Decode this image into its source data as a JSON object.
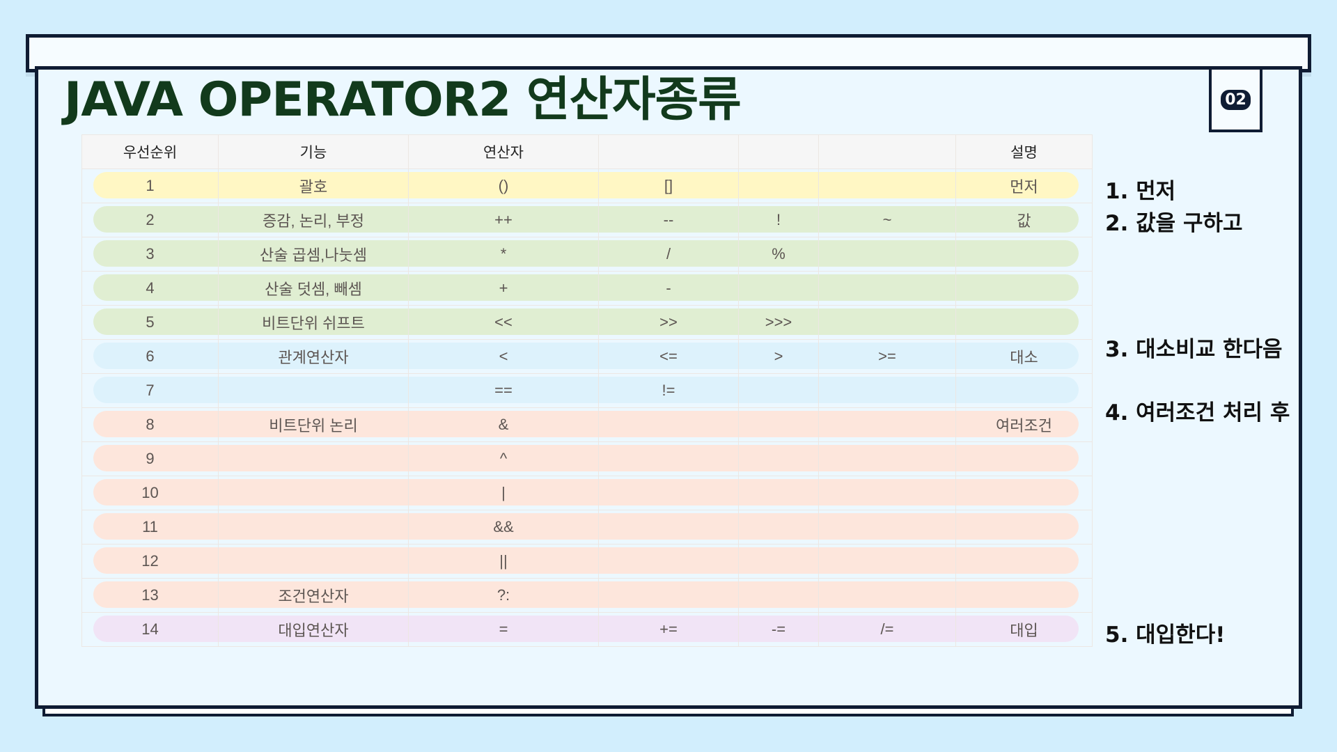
{
  "title": "JAVA OPERATOR2  연산자종류",
  "badge": "02",
  "table": {
    "headers": [
      "우선순위",
      "기능",
      "연산자",
      "",
      "",
      "",
      "설명"
    ],
    "rows": [
      {
        "priority": "1",
        "func": "괄호",
        "op": "()",
        "op2": "[]",
        "op3": "",
        "op4": "",
        "desc": "먼저",
        "color": "#fff7c4"
      },
      {
        "priority": "2",
        "func": "증감, 논리, 부정",
        "op": "++",
        "op2": "--",
        "op3": "!",
        "op4": "~",
        "desc": "값",
        "color": "#e0eed2"
      },
      {
        "priority": "3",
        "func": "산술 곱셈,나눗셈",
        "op": "*",
        "op2": "/",
        "op3": "%",
        "op4": "",
        "desc": "",
        "color": "#e0eed2"
      },
      {
        "priority": "4",
        "func": "산술 덧셈, 빼셈",
        "op": "+",
        "op2": "-",
        "op3": "",
        "op4": "",
        "desc": "",
        "color": "#e0eed2"
      },
      {
        "priority": "5",
        "func": "비트단위 쉬프트",
        "op": "<<",
        "op2": ">>",
        "op3": ">>>",
        "op4": "",
        "desc": "",
        "color": "#e0eed2"
      },
      {
        "priority": "6",
        "func": "관계연산자",
        "op": "<",
        "op2": "<=",
        "op3": ">",
        "op4": ">=",
        "desc": "대소",
        "color": "#ddf2fc"
      },
      {
        "priority": "7",
        "func": "",
        "op": "==",
        "op2": "!=",
        "op3": "",
        "op4": "",
        "desc": "",
        "color": "#ddf2fc"
      },
      {
        "priority": "8",
        "func": "비트단위 논리",
        "op": "&",
        "op2": "",
        "op3": "",
        "op4": "",
        "desc": "여러조건",
        "color": "#fde6dc"
      },
      {
        "priority": "9",
        "func": "",
        "op": "^",
        "op2": "",
        "op3": "",
        "op4": "",
        "desc": "",
        "color": "#fde6dc"
      },
      {
        "priority": "10",
        "func": "",
        "op": "|",
        "op2": "",
        "op3": "",
        "op4": "",
        "desc": "",
        "color": "#fde6dc"
      },
      {
        "priority": "11",
        "func": "",
        "op": "&&",
        "op2": "",
        "op3": "",
        "op4": "",
        "desc": "",
        "color": "#fde6dc"
      },
      {
        "priority": "12",
        "func": "",
        "op": "||",
        "op2": "",
        "op3": "",
        "op4": "",
        "desc": "",
        "color": "#fde6dc"
      },
      {
        "priority": "13",
        "func": "조건연산자",
        "op": "?:",
        "op2": "",
        "op3": "",
        "op4": "",
        "desc": "",
        "color": "#fde6dc"
      },
      {
        "priority": "14",
        "func": "대입연산자",
        "op": "=",
        "op2": "+=",
        "op3": "-=",
        "op4": "/=",
        "desc": "대입",
        "color": "#f1e4f6"
      }
    ]
  },
  "notes": [
    "1. 먼저",
    "2. 값을 구하고",
    "3. 대소비교 한다음",
    "4. 여러조건 처리 후",
    "5. 대입한다!"
  ]
}
